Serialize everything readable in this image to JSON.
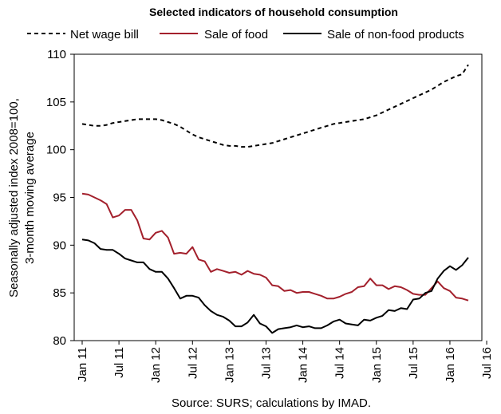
{
  "chart_data": {
    "type": "line",
    "title": "Selected indicators of household consumption",
    "ylabel_line1": "Seasonally adjusted index 2008=100,",
    "ylabel_line2": "3-month moving average",
    "source": "Source: SURS; calculations by IMAD.",
    "ylim": [
      80,
      110
    ],
    "yticks": [
      80,
      85,
      90,
      95,
      100,
      105,
      110
    ],
    "x_start": "2011-01",
    "x_end": "2016-08",
    "xtick_labels": [
      "Jan 11",
      "Jul 11",
      "Jan 12",
      "Jul 12",
      "Jan 13",
      "Jul 13",
      "Jan 14",
      "Jul 14",
      "Jan 15",
      "Jul 15",
      "Jan 16",
      "Jul 16"
    ],
    "legend": [
      "Net wage bill",
      "Sale of food",
      "Sale of non-food products"
    ],
    "series": [
      {
        "name": "Net wage bill",
        "color": "#000000",
        "style": "dashed",
        "values": [
          102.7,
          102.6,
          102.5,
          102.5,
          102.6,
          102.8,
          102.9,
          103.0,
          103.1,
          103.2,
          103.2,
          103.2,
          103.2,
          103.1,
          102.9,
          102.7,
          102.4,
          102.0,
          101.6,
          101.3,
          101.1,
          100.9,
          100.7,
          100.5,
          100.4,
          100.4,
          100.3,
          100.3,
          100.4,
          100.5,
          100.6,
          100.7,
          100.9,
          101.1,
          101.3,
          101.5,
          101.7,
          101.9,
          102.1,
          102.3,
          102.5,
          102.7,
          102.8,
          102.9,
          103.0,
          103.1,
          103.2,
          103.4,
          103.6,
          103.9,
          104.2,
          104.5,
          104.8,
          105.1,
          105.4,
          105.7,
          106.0,
          106.3,
          106.7,
          107.1,
          107.4,
          107.7,
          107.9,
          108.9
        ]
      },
      {
        "name": "Sale of food",
        "color": "#a3202c",
        "style": "solid",
        "values": [
          95.4,
          95.3,
          95.0,
          94.7,
          94.3,
          92.9,
          93.1,
          93.7,
          93.7,
          92.6,
          90.7,
          90.6,
          91.3,
          91.5,
          90.8,
          89.1,
          89.2,
          89.1,
          89.8,
          88.5,
          88.3,
          87.2,
          87.5,
          87.3,
          87.1,
          87.2,
          86.9,
          87.3,
          87.0,
          86.9,
          86.6,
          85.8,
          85.7,
          85.2,
          85.3,
          85.0,
          85.1,
          85.1,
          84.9,
          84.7,
          84.4,
          84.4,
          84.6,
          84.9,
          85.1,
          85.6,
          85.7,
          86.5,
          85.8,
          85.8,
          85.4,
          85.7,
          85.6,
          85.3,
          84.9,
          84.8,
          84.8,
          85.5,
          86.2,
          85.5,
          85.2,
          84.5,
          84.4,
          84.2
        ]
      },
      {
        "name": "Sale of non-food products",
        "color": "#000000",
        "style": "solid",
        "values": [
          90.6,
          90.5,
          90.2,
          89.6,
          89.5,
          89.5,
          89.1,
          88.6,
          88.4,
          88.2,
          88.2,
          87.5,
          87.2,
          87.2,
          86.5,
          85.5,
          84.4,
          84.7,
          84.7,
          84.5,
          83.7,
          83.1,
          82.7,
          82.5,
          82.1,
          81.5,
          81.5,
          81.9,
          82.7,
          81.8,
          81.5,
          80.8,
          81.2,
          81.3,
          81.4,
          81.6,
          81.4,
          81.5,
          81.3,
          81.3,
          81.6,
          82.0,
          82.2,
          81.8,
          81.7,
          81.6,
          82.2,
          82.1,
          82.4,
          82.6,
          83.2,
          83.1,
          83.4,
          83.3,
          84.3,
          84.4,
          85.0,
          85.2,
          86.5,
          87.3,
          87.8,
          87.4,
          87.9,
          88.7
        ]
      }
    ]
  }
}
